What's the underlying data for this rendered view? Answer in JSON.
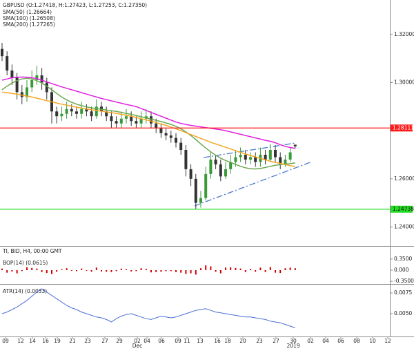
{
  "chart_data": [
    {
      "type": "candlestick",
      "title": "GBPUSD (O:1.27418, H:1.27423, L:1.27253, C:1.27350)",
      "ylim": [
        1.2321,
        1.3343
      ],
      "yticks": [
        {
          "value": 1.32,
          "label": "1.32000"
        },
        {
          "value": 1.3,
          "label": "1.30000"
        },
        {
          "value": 1.26,
          "label": "1.26000"
        },
        {
          "value": 1.24,
          "label": "1.24000"
        }
      ],
      "up_color": "#3a9a3a",
      "down_color": "#333333",
      "ohlc": {
        "open": [
          1.314,
          1.311,
          1.305,
          1.302,
          1.296,
          1.294,
          1.298,
          1.301,
          1.303,
          1.3,
          1.296,
          1.288,
          1.286,
          1.287,
          1.289,
          1.288,
          1.287,
          1.289,
          1.288,
          1.286,
          1.29,
          1.288,
          1.286,
          1.284,
          1.283,
          1.285,
          1.286,
          1.284,
          1.283,
          1.285,
          1.286,
          1.283,
          1.281,
          1.279,
          1.278,
          1.277,
          1.275,
          1.272,
          1.264,
          1.26,
          1.25,
          1.252,
          1.262,
          1.268,
          1.266,
          1.261,
          1.264,
          1.267,
          1.269,
          1.27,
          1.268,
          1.269,
          1.267,
          1.27,
          1.268,
          1.272,
          1.269,
          1.266,
          1.268,
          1.27418
        ],
        "high": [
          1.3165,
          1.313,
          1.3075,
          1.304,
          1.299,
          1.301,
          1.305,
          1.307,
          1.306,
          1.302,
          1.298,
          1.29,
          1.29,
          1.292,
          1.291,
          1.29,
          1.292,
          1.291,
          1.29,
          1.293,
          1.292,
          1.29,
          1.288,
          1.286,
          1.288,
          1.289,
          1.288,
          1.286,
          1.288,
          1.289,
          1.288,
          1.285,
          1.283,
          1.281,
          1.28,
          1.279,
          1.277,
          1.274,
          1.266,
          1.262,
          1.255,
          1.265,
          1.271,
          1.27,
          1.268,
          1.267,
          1.27,
          1.272,
          1.273,
          1.272,
          1.271,
          1.271,
          1.273,
          1.272,
          1.2745,
          1.274,
          1.271,
          1.27,
          1.273,
          1.27423
        ],
        "low": [
          1.309,
          1.303,
          1.299,
          1.293,
          1.291,
          1.292,
          1.296,
          1.299,
          1.297,
          1.293,
          1.283,
          1.283,
          1.284,
          1.285,
          1.286,
          1.285,
          1.285,
          1.286,
          1.284,
          1.285,
          1.286,
          1.284,
          1.281,
          1.281,
          1.281,
          1.283,
          1.282,
          1.281,
          1.281,
          1.283,
          1.281,
          1.279,
          1.277,
          1.276,
          1.275,
          1.273,
          1.27,
          1.261,
          1.257,
          1.2474,
          1.248,
          1.251,
          1.26,
          1.264,
          1.259,
          1.26,
          1.262,
          1.265,
          1.267,
          1.266,
          1.266,
          1.265,
          1.265,
          1.266,
          1.267,
          1.267,
          1.264,
          1.265,
          1.267,
          1.27253
        ],
        "close": [
          1.311,
          1.305,
          1.302,
          1.296,
          1.294,
          1.298,
          1.301,
          1.303,
          1.3,
          1.296,
          1.288,
          1.286,
          1.287,
          1.289,
          1.288,
          1.287,
          1.289,
          1.288,
          1.286,
          1.29,
          1.288,
          1.286,
          1.284,
          1.283,
          1.285,
          1.286,
          1.284,
          1.283,
          1.285,
          1.286,
          1.283,
          1.281,
          1.279,
          1.278,
          1.277,
          1.275,
          1.272,
          1.264,
          1.26,
          1.25,
          1.252,
          1.262,
          1.268,
          1.266,
          1.261,
          1.264,
          1.267,
          1.269,
          1.27,
          1.268,
          1.269,
          1.267,
          1.27,
          1.268,
          1.272,
          1.269,
          1.266,
          1.268,
          1.271,
          1.2735
        ]
      },
      "series": [
        {
          "name": "SMA(50) (1.26664)",
          "color": "#6aa84f",
          "values": [
            1.297,
            1.2985,
            1.2998,
            1.3008,
            1.3015,
            1.3018,
            1.3015,
            1.3008,
            1.2998,
            1.2985,
            1.297,
            1.2955,
            1.294,
            1.2928,
            1.2918,
            1.291,
            1.2904,
            1.2899,
            1.2895,
            1.2892,
            1.2889,
            1.2886,
            1.2883,
            1.288,
            1.2876,
            1.2872,
            1.2868,
            1.2863,
            1.2858,
            1.2853,
            1.2848,
            1.2843,
            1.2838,
            1.2832,
            1.2826,
            1.2818,
            1.2808,
            1.2795,
            1.278,
            1.2763,
            1.2745,
            1.2728,
            1.2712,
            1.2698,
            1.2686,
            1.2676,
            1.2668,
            1.266,
            1.2652,
            1.2646,
            1.2642,
            1.2641,
            1.2643,
            1.2647,
            1.2652,
            1.2656,
            1.2659,
            1.2661,
            1.2663,
            1.26664
          ]
        },
        {
          "name": "SMA(100) (1.26508)",
          "color": "#f5a623",
          "values": [
            1.296,
            1.2958,
            1.2955,
            1.2952,
            1.2948,
            1.2944,
            1.294,
            1.2935,
            1.293,
            1.2925,
            1.292,
            1.2915,
            1.291,
            1.2906,
            1.2902,
            1.2898,
            1.2894,
            1.289,
            1.2887,
            1.2884,
            1.2881,
            1.2878,
            1.2875,
            1.2872,
            1.2868,
            1.2864,
            1.286,
            1.2855,
            1.285,
            1.2845,
            1.284,
            1.2834,
            1.2828,
            1.2822,
            1.2815,
            1.2808,
            1.28,
            1.2792,
            1.2784,
            1.2776,
            1.2768,
            1.276,
            1.2752,
            1.2745,
            1.2738,
            1.2731,
            1.2724,
            1.2717,
            1.271,
            1.2703,
            1.2697,
            1.2691,
            1.2685,
            1.2679,
            1.2673,
            1.2668,
            1.2664,
            1.2659,
            1.2655,
            1.26508
          ]
        },
        {
          "name": "SMA(200) (1.27265)",
          "color": "#e020e0",
          "values": [
            1.301,
            1.3015,
            1.302,
            1.3022,
            1.3023,
            1.3022,
            1.302,
            1.3016,
            1.301,
            1.3003,
            1.2996,
            1.2989,
            1.2982,
            1.2976,
            1.297,
            1.2964,
            1.2958,
            1.2952,
            1.2946,
            1.294,
            1.2934,
            1.2929,
            1.2924,
            1.2919,
            1.2914,
            1.2909,
            1.2905,
            1.29,
            1.2892,
            1.2884,
            1.2876,
            1.2868,
            1.286,
            1.2852,
            1.2844,
            1.2836,
            1.283,
            1.2826,
            1.2822,
            1.2819,
            1.2816,
            1.2813,
            1.281,
            1.2807,
            1.2804,
            1.28,
            1.2795,
            1.279,
            1.2785,
            1.278,
            1.2775,
            1.277,
            1.2765,
            1.276,
            1.2756,
            1.275,
            1.2742,
            1.2735,
            1.273,
            1.27265
          ]
        }
      ],
      "hlines": [
        {
          "value": 1.28111,
          "label": "1.28111",
          "color": "#ff1a1a"
        },
        {
          "value": 1.24738,
          "label": "1.24738",
          "color": "#22dd22"
        }
      ]
    },
    {
      "type": "bar",
      "subtitle": "TI, BID, H4, 00:00 GMT",
      "title": "BOP(14) (0.0615)",
      "color": "#d00000",
      "ylim": [
        -0.435,
        0.456
      ],
      "yticks": [
        {
          "value": 0.35,
          "label": "0.3500"
        },
        {
          "value": 0,
          "label": "0.000"
        },
        {
          "value": -0.35,
          "label": "-0.3500"
        }
      ],
      "values": [
        0.05,
        -0.08,
        -0.04,
        -0.1,
        -0.03,
        0.09,
        0.07,
        0.05,
        -0.06,
        -0.09,
        -0.12,
        -0.05,
        0.03,
        0.06,
        -0.02,
        -0.03,
        0.05,
        -0.02,
        -0.05,
        0.08,
        -0.04,
        -0.05,
        -0.06,
        -0.03,
        0.05,
        0.03,
        -0.04,
        -0.03,
        0.06,
        0.04,
        -0.07,
        -0.06,
        -0.05,
        -0.03,
        -0.03,
        -0.06,
        -0.08,
        -0.12,
        -0.1,
        -0.14,
        0.06,
        0.15,
        0.12,
        -0.05,
        -0.1,
        0.08,
        0.09,
        0.07,
        0.05,
        -0.06,
        0.04,
        -0.05,
        0.08,
        -0.06,
        0.1,
        -0.08,
        -0.09,
        0.06,
        0.08,
        0.0615
      ]
    },
    {
      "type": "line",
      "title": "ATR(14) (0.0033)",
      "color": "#4a6fd8",
      "ylim": [
        0.00225,
        0.0085
      ],
      "yticks": [
        {
          "value": 0.0075,
          "label": "0.0075"
        },
        {
          "value": 0.005,
          "label": "0.0050"
        }
      ],
      "values": [
        0.005,
        0.0052,
        0.0055,
        0.0058,
        0.0062,
        0.0066,
        0.0071,
        0.0076,
        0.008,
        0.0076,
        0.0072,
        0.0068,
        0.0064,
        0.006,
        0.0057,
        0.0055,
        0.0052,
        0.005,
        0.0048,
        0.0046,
        0.0045,
        0.0043,
        0.004,
        0.0044,
        0.0047,
        0.0049,
        0.005,
        0.0048,
        0.0046,
        0.0044,
        0.0043,
        0.0045,
        0.0047,
        0.0046,
        0.0045,
        0.0046,
        0.0048,
        0.005,
        0.0052,
        0.0054,
        0.0055,
        0.0056,
        0.0054,
        0.0052,
        0.0051,
        0.005,
        0.0049,
        0.0048,
        0.0047,
        0.0046,
        0.0046,
        0.0045,
        0.0044,
        0.0043,
        0.0041,
        0.004,
        0.0039,
        0.0037,
        0.0035,
        0.0033
      ],
      "xlabels": [
        "09",
        "12",
        "14",
        "16",
        "19",
        "21",
        "23",
        "27",
        "29",
        "02",
        "04",
        "06",
        "09",
        "11",
        "13",
        "16",
        "18",
        "20",
        "23",
        "27",
        "30",
        "02",
        "04",
        "06",
        "08",
        "10",
        "12"
      ],
      "xsublabels": [
        "Dec",
        "2019"
      ]
    }
  ]
}
